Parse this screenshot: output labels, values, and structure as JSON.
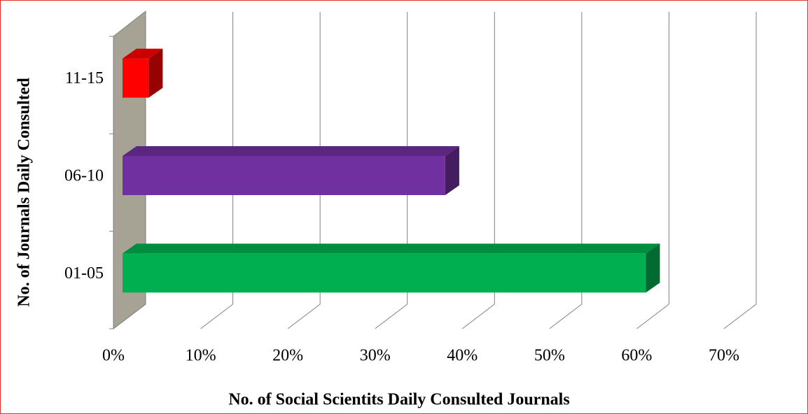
{
  "chart_data": {
    "type": "bar",
    "orientation": "horizontal",
    "x_label": "No. of Social Scientits Daily Consulted Journals",
    "y_label": "No. of Journals  Daily Consulted",
    "categories": [
      "01-05",
      "06-10",
      "11-15"
    ],
    "values": [
      60,
      37,
      3
    ],
    "colors": [
      "#00b050",
      "#7030a0",
      "#ff0000"
    ],
    "xlim": [
      0,
      70
    ],
    "xticks": [
      {
        "value": 0,
        "label": "0%"
      },
      {
        "value": 10,
        "label": "10%"
      },
      {
        "value": 20,
        "label": "20%"
      },
      {
        "value": 30,
        "label": "30%"
      },
      {
        "value": 40,
        "label": "40%"
      },
      {
        "value": 50,
        "label": "50%"
      },
      {
        "value": 60,
        "label": "60%"
      },
      {
        "value": 70,
        "label": "70%"
      }
    ],
    "grid": true
  }
}
